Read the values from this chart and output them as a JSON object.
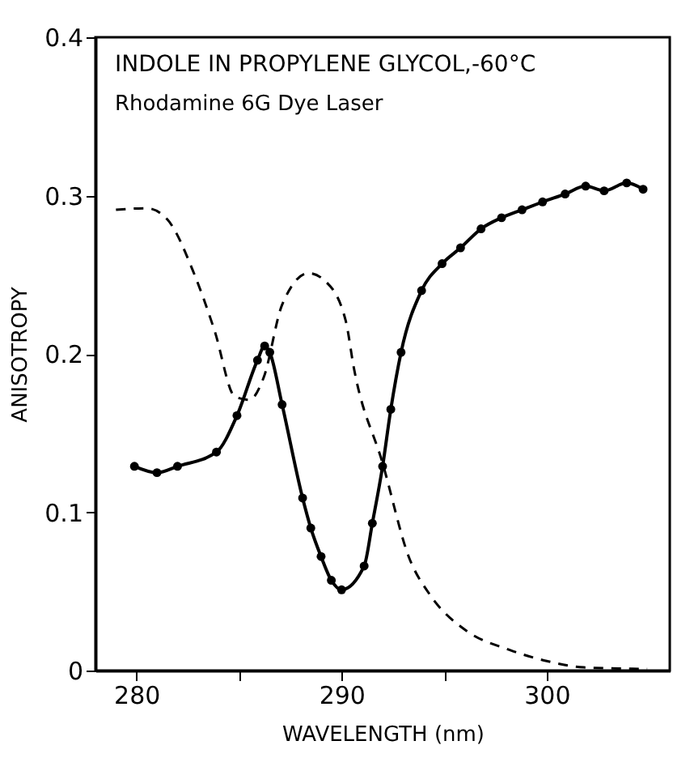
{
  "chart_data": {
    "type": "line",
    "title": "INDOLE IN PROPYLENE GLYCOL,-60°C",
    "subtitle": "Rhodamine 6G Dye Laser",
    "xlabel": "WAVELENGTH (nm)",
    "ylabel": "ANISOTROPY",
    "xlim": [
      278,
      306
    ],
    "xticks": [
      280,
      {
        "value": 285,
        "label": null
      },
      290,
      {
        "value": 295,
        "label": null
      },
      300
    ],
    "ylim": [
      0,
      0.4
    ],
    "yticks": [
      0,
      0.1,
      0.2,
      0.3,
      0.4
    ],
    "grid": false,
    "series": [
      {
        "color": "#000000",
        "marker": "circle",
        "line_style": "solid",
        "x": [
          279.9,
          281.0,
          282.0,
          283.9,
          284.9,
          285.9,
          286.25,
          286.5,
          287.1,
          288.1,
          288.5,
          289.0,
          289.5,
          290.0,
          291.1,
          291.5,
          292.0,
          292.4,
          292.9,
          293.9,
          294.9,
          295.8,
          296.8,
          297.8,
          298.8,
          299.8,
          300.9,
          301.9,
          302.8,
          303.9,
          304.7
        ],
        "values": [
          0.129,
          0.125,
          0.129,
          0.138,
          0.161,
          0.196,
          0.205,
          0.201,
          0.168,
          0.109,
          0.09,
          0.072,
          0.057,
          0.051,
          0.066,
          0.093,
          0.129,
          0.165,
          0.201,
          0.24,
          0.257,
          0.267,
          0.279,
          0.286,
          0.291,
          0.296,
          0.301,
          0.306,
          0.303,
          0.308,
          0.304
        ]
      },
      {
        "color": "#000000",
        "marker": "none",
        "line_style": "dashed",
        "x": [
          279.0,
          280.5,
          281.5,
          282.8,
          283.8,
          284.8,
          285.5,
          286.2,
          287.1,
          288.4,
          289.2,
          290.2,
          290.6,
          292.0,
          293.3,
          294.3,
          296.1,
          298.2,
          300.0,
          301.8,
          304.9
        ],
        "values": [
          0.291,
          0.292,
          0.285,
          0.251,
          0.215,
          0.173,
          0.171,
          0.185,
          0.231,
          0.251,
          0.246,
          0.221,
          0.191,
          0.131,
          0.071,
          0.048,
          0.025,
          0.013,
          0.006,
          0.002,
          0.001
        ]
      }
    ]
  }
}
